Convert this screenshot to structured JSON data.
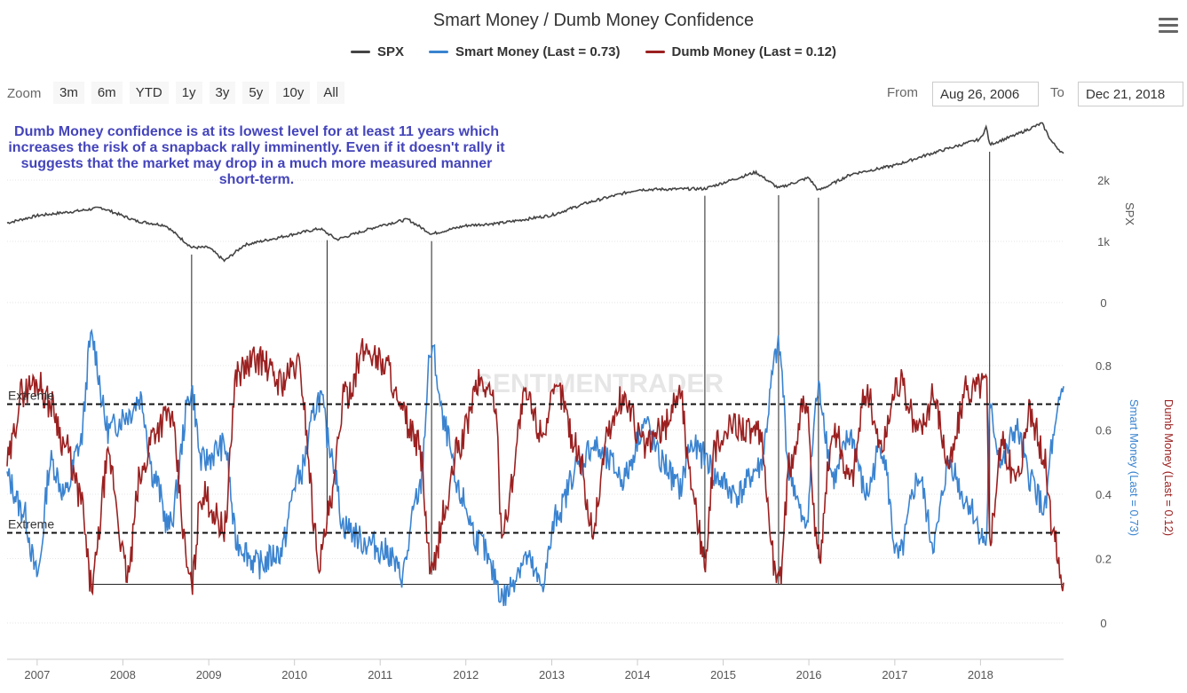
{
  "chart_data": {
    "type": "line",
    "title": "Smart Money / Dumb Money Confidence",
    "x_range": [
      "2006-08-26",
      "2018-12-21"
    ],
    "x_ticks": [
      "2007",
      "2008",
      "2009",
      "2010",
      "2011",
      "2012",
      "2013",
      "2014",
      "2015",
      "2016",
      "2017",
      "2018"
    ],
    "series": [
      {
        "name": "SPX",
        "color": "#444444",
        "axis": "SPX",
        "x": [
          "2006-08-26",
          "2007-01-01",
          "2007-07-01",
          "2007-10-01",
          "2008-03-01",
          "2008-07-01",
          "2008-10-20",
          "2009-01-01",
          "2009-03-09",
          "2009-06-01",
          "2010-01-01",
          "2010-04-20",
          "2010-07-01",
          "2010-12-31",
          "2011-04-29",
          "2011-08-08",
          "2011-12-31",
          "2012-06-01",
          "2012-12-31",
          "2013-06-01",
          "2014-01-01",
          "2014-10-15",
          "2015-05-20",
          "2015-08-25",
          "2015-12-31",
          "2016-02-11",
          "2016-07-01",
          "2016-12-31",
          "2017-06-01",
          "2017-12-31",
          "2018-01-26",
          "2018-02-09",
          "2018-06-01",
          "2018-09-20",
          "2018-10-29",
          "2018-12-21"
        ],
        "values": [
          1300,
          1420,
          1500,
          1550,
          1330,
          1260,
          900,
          900,
          680,
          940,
          1120,
          1210,
          1030,
          1257,
          1360,
          1120,
          1257,
          1300,
          1426,
          1630,
          1845,
          1860,
          2130,
          1870,
          2040,
          1830,
          2100,
          2240,
          2430,
          2670,
          2870,
          2580,
          2740,
          2930,
          2640,
          2420
        ]
      },
      {
        "name": "Smart Money (Last = 0.73)",
        "color": "#3a83d0",
        "axis": "Confidence",
        "x": [
          "2006-08-26",
          "2006-11-01",
          "2007-01-01",
          "2007-03-01",
          "2007-05-01",
          "2007-07-01",
          "2007-08-20",
          "2007-11-01",
          "2008-01-22",
          "2008-03-15",
          "2008-05-15",
          "2008-07-15",
          "2008-10-20",
          "2008-12-01",
          "2009-03-09",
          "2009-05-01",
          "2009-08-01",
          "2009-11-01",
          "2010-01-15",
          "2010-04-20",
          "2010-06-01",
          "2010-08-01",
          "2010-11-01",
          "2011-02-01",
          "2011-04-01",
          "2011-06-15",
          "2011-08-08",
          "2011-10-05",
          "2011-12-01",
          "2012-03-01",
          "2012-05-01",
          "2012-06-04",
          "2012-09-14",
          "2012-11-15",
          "2013-02-01",
          "2013-04-15",
          "2013-06-24",
          "2013-09-01",
          "2013-11-01",
          "2014-02-03",
          "2014-04-15",
          "2014-07-01",
          "2014-08-15",
          "2014-10-15",
          "2014-12-01",
          "2015-03-01",
          "2015-06-01",
          "2015-08-25",
          "2015-10-15",
          "2015-12-15",
          "2016-02-11",
          "2016-04-15",
          "2016-06-27",
          "2016-09-01",
          "2016-11-04",
          "2017-01-15",
          "2017-04-13",
          "2017-06-15",
          "2017-08-21",
          "2017-11-01",
          "2018-01-26",
          "2018-02-09",
          "2018-04-02",
          "2018-06-01",
          "2018-08-01",
          "2018-10-03",
          "2018-11-01",
          "2018-12-21"
        ],
        "values": [
          0.45,
          0.35,
          0.15,
          0.5,
          0.4,
          0.55,
          0.88,
          0.6,
          0.65,
          0.7,
          0.45,
          0.3,
          0.72,
          0.5,
          0.55,
          0.25,
          0.18,
          0.22,
          0.45,
          0.7,
          0.55,
          0.3,
          0.25,
          0.22,
          0.15,
          0.4,
          0.85,
          0.6,
          0.4,
          0.25,
          0.15,
          0.08,
          0.2,
          0.12,
          0.35,
          0.48,
          0.55,
          0.5,
          0.45,
          0.62,
          0.5,
          0.42,
          0.55,
          0.52,
          0.45,
          0.4,
          0.48,
          0.85,
          0.45,
          0.3,
          0.72,
          0.45,
          0.58,
          0.4,
          0.55,
          0.2,
          0.45,
          0.25,
          0.5,
          0.38,
          0.25,
          0.65,
          0.5,
          0.6,
          0.45,
          0.35,
          0.55,
          0.73
        ]
      },
      {
        "name": "Dumb Money (Last = 0.12)",
        "color": "#9b2020",
        "axis": "Confidence",
        "x": [
          "2006-08-26",
          "2006-11-01",
          "2007-01-01",
          "2007-03-01",
          "2007-05-01",
          "2007-07-01",
          "2007-08-20",
          "2007-11-01",
          "2008-01-22",
          "2008-03-15",
          "2008-05-15",
          "2008-07-15",
          "2008-10-20",
          "2008-12-01",
          "2009-03-09",
          "2009-05-01",
          "2009-08-01",
          "2009-11-01",
          "2010-01-15",
          "2010-04-20",
          "2010-06-01",
          "2010-08-01",
          "2010-11-01",
          "2011-02-01",
          "2011-04-01",
          "2011-06-15",
          "2011-08-08",
          "2011-10-05",
          "2011-12-01",
          "2012-03-01",
          "2012-05-01",
          "2012-06-04",
          "2012-09-14",
          "2012-11-15",
          "2013-02-01",
          "2013-04-15",
          "2013-06-24",
          "2013-09-01",
          "2013-11-01",
          "2014-02-03",
          "2014-04-15",
          "2014-07-01",
          "2014-08-15",
          "2014-10-15",
          "2014-12-01",
          "2015-03-01",
          "2015-06-01",
          "2015-08-25",
          "2015-10-15",
          "2015-12-15",
          "2016-02-11",
          "2016-04-15",
          "2016-06-27",
          "2016-09-01",
          "2016-11-04",
          "2017-01-15",
          "2017-04-13",
          "2017-06-15",
          "2017-08-21",
          "2017-11-01",
          "2018-01-26",
          "2018-02-09",
          "2018-04-02",
          "2018-06-01",
          "2018-08-01",
          "2018-10-03",
          "2018-11-01",
          "2018-12-21"
        ],
        "values": [
          0.5,
          0.72,
          0.75,
          0.68,
          0.55,
          0.4,
          0.12,
          0.5,
          0.15,
          0.45,
          0.6,
          0.65,
          0.12,
          0.4,
          0.3,
          0.78,
          0.82,
          0.75,
          0.8,
          0.2,
          0.35,
          0.7,
          0.85,
          0.8,
          0.65,
          0.55,
          0.15,
          0.35,
          0.55,
          0.75,
          0.7,
          0.3,
          0.7,
          0.6,
          0.72,
          0.55,
          0.3,
          0.6,
          0.7,
          0.55,
          0.6,
          0.72,
          0.45,
          0.2,
          0.55,
          0.62,
          0.58,
          0.12,
          0.5,
          0.7,
          0.2,
          0.6,
          0.45,
          0.72,
          0.55,
          0.75,
          0.6,
          0.7,
          0.5,
          0.72,
          0.75,
          0.28,
          0.55,
          0.45,
          0.65,
          0.5,
          0.3,
          0.12
        ]
      }
    ],
    "y_axes": [
      {
        "label": "SPX",
        "ticks": [
          "0",
          "1k",
          "2k"
        ],
        "range": [
          0,
          3000
        ]
      },
      {
        "label": "Smart Money (Last = 0.73)",
        "secondary_label": "Dumb Money (Last = 0.12)",
        "ticks": [
          "0",
          "0.2",
          "0.4",
          "0.6",
          "0.8"
        ],
        "range": [
          0,
          0.9
        ]
      }
    ],
    "extreme_lines": [
      {
        "label": "Extreme",
        "value": 0.68
      },
      {
        "label": "Extreme",
        "value": 0.28
      }
    ],
    "baseline": {
      "value": 0.12,
      "from": "2007-08-20",
      "to": "2018-12-21"
    },
    "markers": [
      "2008-10-20",
      "2010-05-20",
      "2011-08-08",
      "2014-10-15",
      "2015-08-25",
      "2016-02-11",
      "2018-02-09"
    ],
    "annotation": "Dumb Money confidence is at its lowest level for at least 11 years which increases the risk of a snapback rally imminently. Even if it doesn't rally it suggests that the market may drop in a much more measured manner short-term.",
    "watermark": "SENTIMENTRADER",
    "grid": true,
    "legend_position": "top"
  },
  "toolbar": {
    "zoom_label": "Zoom",
    "zoom_buttons": [
      "3m",
      "6m",
      "YTD",
      "1y",
      "3y",
      "5y",
      "10y",
      "All"
    ],
    "from_label": "From",
    "from_value": "Aug 26, 2006",
    "to_label": "To",
    "to_value": "Dec 21, 2018"
  }
}
